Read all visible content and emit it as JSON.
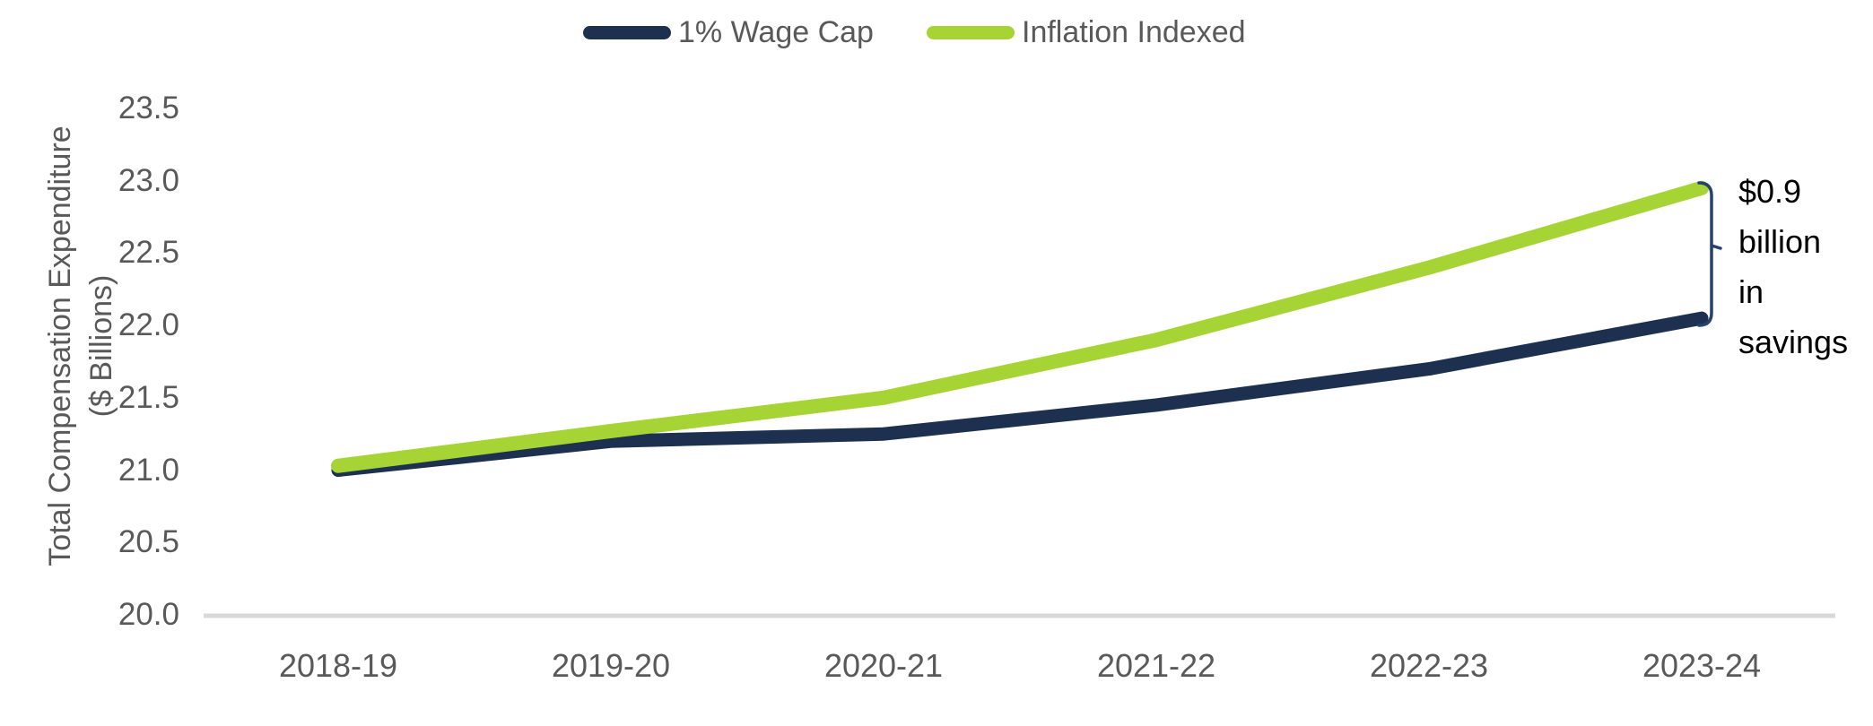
{
  "chart_data": {
    "type": "line",
    "title": "",
    "categories": [
      "2018-19",
      "2019-20",
      "2020-21",
      "2021-22",
      "2022-23",
      "2023-24"
    ],
    "series": [
      {
        "name": "1% Wage Cap",
        "color": "#1e3050",
        "values": [
          21.0,
          21.2,
          21.25,
          21.45,
          21.7,
          22.05
        ]
      },
      {
        "name": "Inflation Indexed",
        "color": "#a6d435",
        "values": [
          21.03,
          21.27,
          21.5,
          21.9,
          22.4,
          22.95
        ]
      }
    ],
    "ylabel_line1": "Total Compensation Expenditure",
    "ylabel_line2": "($ Billions)",
    "xlabel": "",
    "ylim": [
      20.0,
      23.5
    ],
    "ytick_step": 0.5,
    "yticks": [
      "20.0",
      "20.5",
      "21.0",
      "21.5",
      "22.0",
      "22.5",
      "23.0",
      "23.5"
    ],
    "legend_position": "top-center",
    "grid": false
  },
  "annotation": {
    "text": "$0.9 billion in savings",
    "lines": [
      "$0.9",
      "billion",
      "in",
      "savings"
    ],
    "bracket_color": "#24426b",
    "text_color": "#000000"
  },
  "colors": {
    "axis_text": "#595959",
    "axis_line": "#d9d9d9",
    "background": "#ffffff"
  }
}
